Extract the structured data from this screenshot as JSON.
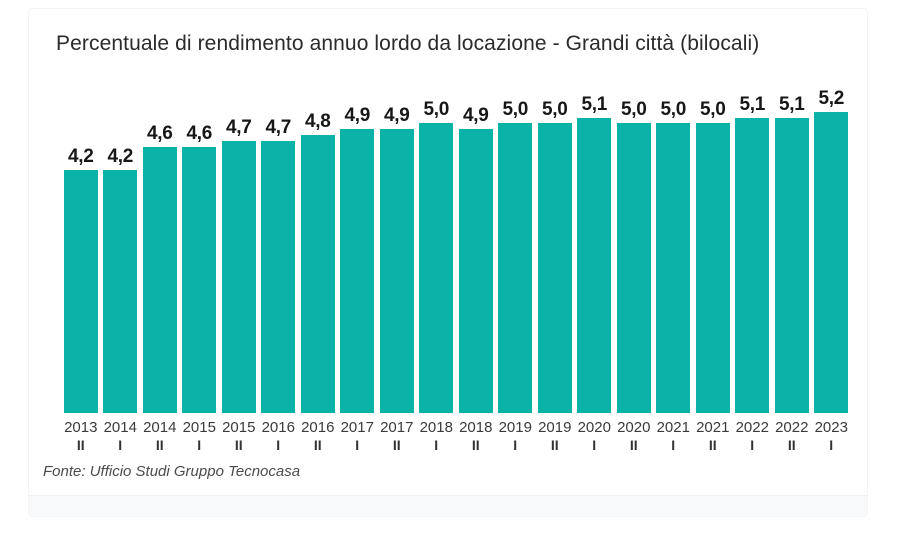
{
  "title": "Percentuale di rendimento annuo lordo da locazione - Grandi città (bilocali)",
  "source": "Fonte: Ufficio Studi Gruppo Tecnocasa",
  "colors": {
    "bar": "#0bb2a8",
    "title_text": "#2b2b2b",
    "value_text": "#171717",
    "axis_text": "#3b3b3b",
    "footer_strip": "#f8f9fa"
  },
  "chart_data": {
    "type": "bar",
    "title": "Percentuale di rendimento annuo lordo da locazione - Grandi città (bilocali)",
    "xlabel": "",
    "ylabel": "",
    "ylim": [
      0,
      5.8
    ],
    "grid": false,
    "legend": false,
    "decimal_separator": ",",
    "categories": [
      {
        "year": "2013",
        "sem": "II"
      },
      {
        "year": "2014",
        "sem": "I"
      },
      {
        "year": "2014",
        "sem": "II"
      },
      {
        "year": "2015",
        "sem": "I"
      },
      {
        "year": "2015",
        "sem": "II"
      },
      {
        "year": "2016",
        "sem": "I"
      },
      {
        "year": "2016",
        "sem": "II"
      },
      {
        "year": "2017",
        "sem": "I"
      },
      {
        "year": "2017",
        "sem": "II"
      },
      {
        "year": "2018",
        "sem": "I"
      },
      {
        "year": "2018",
        "sem": "II"
      },
      {
        "year": "2019",
        "sem": "I"
      },
      {
        "year": "2019",
        "sem": "II"
      },
      {
        "year": "2020",
        "sem": "I"
      },
      {
        "year": "2020",
        "sem": "II"
      },
      {
        "year": "2021",
        "sem": "I"
      },
      {
        "year": "2021",
        "sem": "II"
      },
      {
        "year": "2022",
        "sem": "I"
      },
      {
        "year": "2022",
        "sem": "II"
      },
      {
        "year": "2023",
        "sem": "I"
      }
    ],
    "values": [
      4.2,
      4.2,
      4.6,
      4.6,
      4.7,
      4.7,
      4.8,
      4.9,
      4.9,
      5.0,
      4.9,
      5.0,
      5.0,
      5.1,
      5.0,
      5.0,
      5.0,
      5.1,
      5.1,
      5.2
    ],
    "value_labels": [
      "4,2",
      "4,2",
      "4,6",
      "4,6",
      "4,7",
      "4,7",
      "4,8",
      "4,9",
      "4,9",
      "5,0",
      "4,9",
      "5,0",
      "5,0",
      "5,1",
      "5,0",
      "5,0",
      "5,0",
      "5,1",
      "5,1",
      "5,2"
    ]
  }
}
